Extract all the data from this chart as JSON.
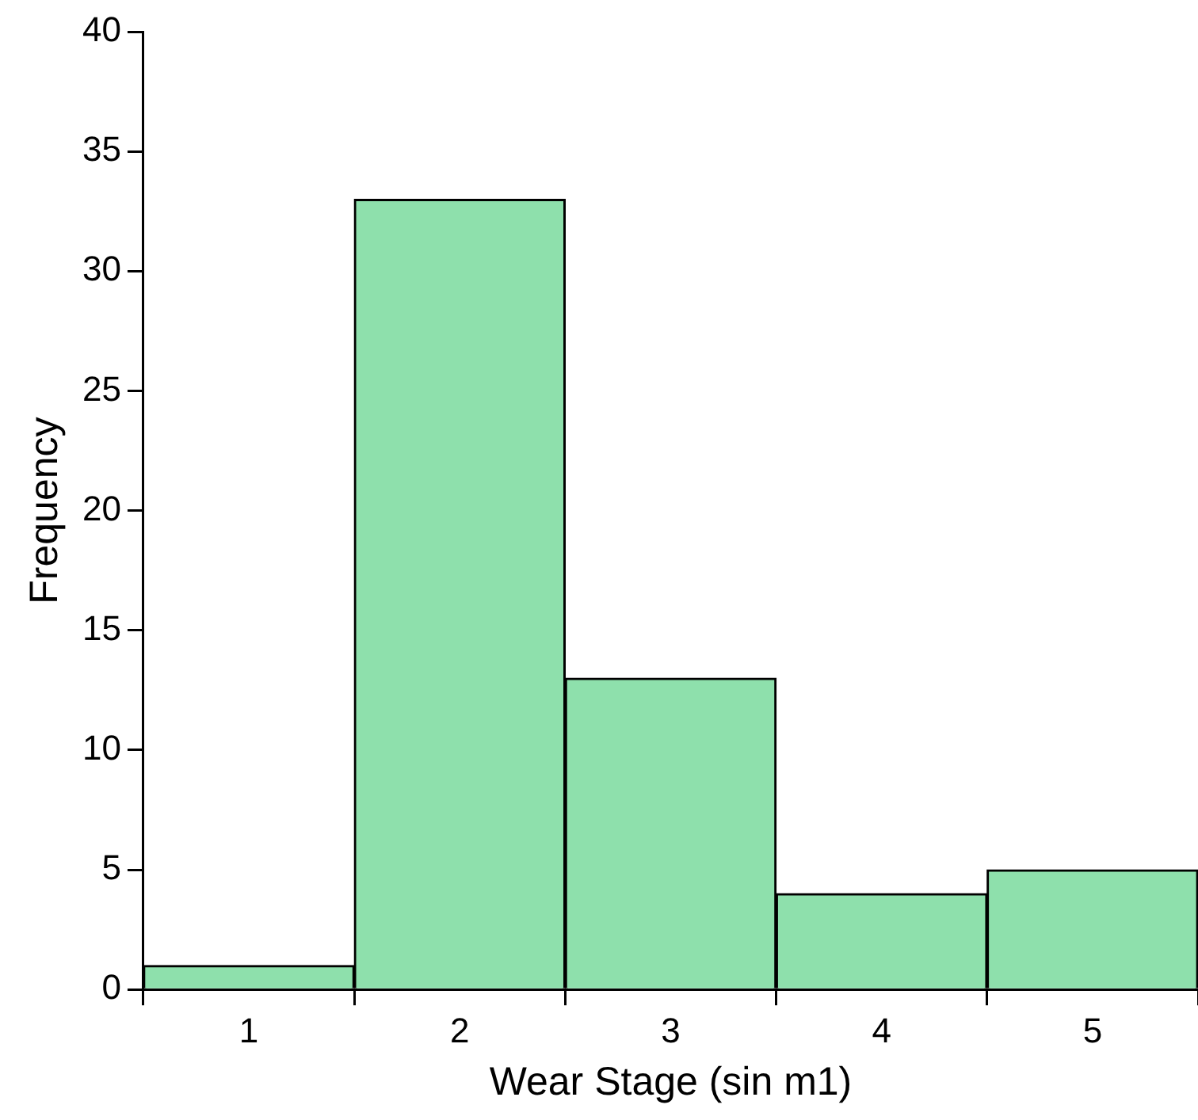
{
  "chart_data": {
    "type": "bar",
    "xlabel": "Wear Stage (sin m1)",
    "ylabel": "Frequency",
    "categories": [
      "1",
      "2",
      "3",
      "4",
      "5"
    ],
    "values": [
      1,
      33,
      13,
      4,
      5
    ],
    "color": "#8ee0ac",
    "ylim": [
      0,
      40
    ],
    "yticks": [
      0,
      5,
      10,
      15,
      20,
      25,
      30,
      35,
      40
    ],
    "grid": false
  }
}
